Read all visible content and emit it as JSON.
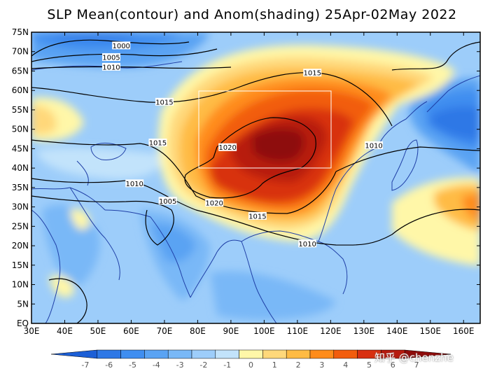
{
  "title": "SLP Mean(contour) and Anom(shading) 25Apr-02May 2022",
  "lat_labels": [
    "75N",
    "70N",
    "65N",
    "60N",
    "55N",
    "50N",
    "45N",
    "40N",
    "35N",
    "30N",
    "25N",
    "20N",
    "15N",
    "10N",
    "5N",
    "EQ"
  ],
  "lon_labels": [
    "30E",
    "40E",
    "50E",
    "60E",
    "70E",
    "80E",
    "90E",
    "100E",
    "110E",
    "120E",
    "130E",
    "140E",
    "150E",
    "160E"
  ],
  "contour_labels": [
    {
      "text": "1000",
      "lon": 57,
      "lat": 71.5
    },
    {
      "text": "1005",
      "lon": 54,
      "lat": 68.5
    },
    {
      "text": "1010",
      "lon": 54,
      "lat": 66
    },
    {
      "text": "1015",
      "lon": 70,
      "lat": 57
    },
    {
      "text": "1015",
      "lon": 68,
      "lat": 46.5
    },
    {
      "text": "1010",
      "lon": 61,
      "lat": 36
    },
    {
      "text": "1005",
      "lon": 71,
      "lat": 31.5
    },
    {
      "text": "1020",
      "lon": 89,
      "lat": 45.3
    },
    {
      "text": "1020",
      "lon": 85,
      "lat": 31
    },
    {
      "text": "1015",
      "lon": 98,
      "lat": 27.6
    },
    {
      "text": "1015",
      "lon": 114.5,
      "lat": 64.5
    },
    {
      "text": "1010",
      "lon": 133,
      "lat": 45.8
    },
    {
      "text": "1010",
      "lon": 113,
      "lat": 20.5
    }
  ],
  "colorbar": {
    "labels": [
      "-7",
      "-6",
      "-5",
      "-4",
      "-3",
      "-2",
      "-1",
      "0",
      "1",
      "2",
      "3",
      "4",
      "5",
      "6",
      "7"
    ],
    "colors": [
      "#1c5fd6",
      "#2e78e6",
      "#3f8ef0",
      "#5aa3f3",
      "#79b8f7",
      "#9dcdfa",
      "#c2e3fb",
      "#fff7a8",
      "#ffd87a",
      "#ffbb44",
      "#ff8c1a",
      "#f25d0c",
      "#d83010",
      "#b71a0e",
      "#8e0b0a"
    ]
  },
  "watermark": "知乎 @chenzhe"
}
